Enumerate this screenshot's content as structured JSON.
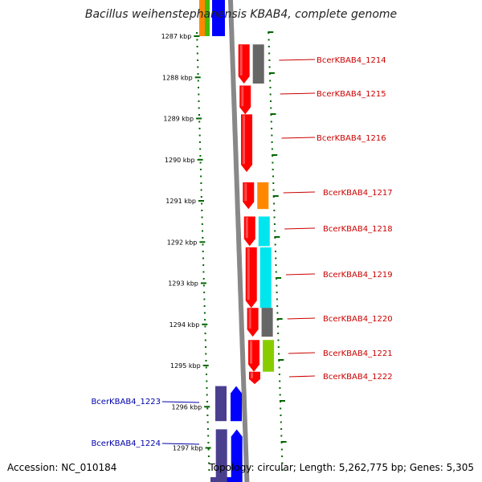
{
  "title": "Bacillus weihenstephanensis KBAB4, complete genome",
  "footer": {
    "accession": "Accession: NC_010184",
    "summary": "Topology: circular; Length: 5,262,775 bp; Genes: 5,305"
  },
  "colors": {
    "forward": "#ff0000",
    "reverse_strand": "#0000ff",
    "reverse_cog": "#4a3f8f",
    "label_forward": "#cc0000",
    "label_reverse": "#0000aa",
    "ruler": "#006600",
    "backbone": "#888888"
  },
  "scale": {
    "unit": "kbp",
    "ticks": [
      {
        "kbp": 1287,
        "label": "1287 kbp"
      },
      {
        "kbp": 1288,
        "label": "1288 kbp"
      },
      {
        "kbp": 1289,
        "label": "1289 kbp"
      },
      {
        "kbp": 1290,
        "label": "1290 kbp"
      },
      {
        "kbp": 1291,
        "label": "1291 kbp"
      },
      {
        "kbp": 1292,
        "label": "1292 kbp"
      },
      {
        "kbp": 1293,
        "label": "1293 kbp"
      },
      {
        "kbp": 1294,
        "label": "1294 kbp"
      },
      {
        "kbp": 1295,
        "label": "1295 kbp"
      },
      {
        "kbp": 1296,
        "label": "1296 kbp"
      },
      {
        "kbp": 1297,
        "label": "1297 kbp"
      }
    ]
  },
  "genes": [
    {
      "name": "BcerKBAB4_1214",
      "strand": "+",
      "start_kbp": 1287.2,
      "end_kbp": 1288.15,
      "cog_color": "#666666"
    },
    {
      "name": "BcerKBAB4_1215",
      "strand": "+",
      "start_kbp": 1288.2,
      "end_kbp": 1288.9,
      "cog_color": null
    },
    {
      "name": "BcerKBAB4_1216",
      "strand": "+",
      "start_kbp": 1288.9,
      "end_kbp": 1290.3,
      "cog_color": null
    },
    {
      "name": "BcerKBAB4_1217",
      "strand": "+",
      "start_kbp": 1290.55,
      "end_kbp": 1291.2,
      "cog_color": "#ff8800"
    },
    {
      "name": "BcerKBAB4_1218",
      "strand": "+",
      "start_kbp": 1291.38,
      "end_kbp": 1292.1,
      "cog_color": "#00e5ee"
    },
    {
      "name": "BcerKBAB4_1219",
      "strand": "+",
      "start_kbp": 1292.13,
      "end_kbp": 1293.6,
      "cog_color": "#00e5ee"
    },
    {
      "name": "BcerKBAB4_1220",
      "strand": "+",
      "start_kbp": 1293.6,
      "end_kbp": 1294.3,
      "cog_color": "#666666"
    },
    {
      "name": "BcerKBAB4_1221",
      "strand": "+",
      "start_kbp": 1294.38,
      "end_kbp": 1295.15,
      "cog_color": "#88cc00"
    },
    {
      "name": "BcerKBAB4_1222",
      "strand": "+",
      "start_kbp": 1295.15,
      "end_kbp": 1295.45,
      "cog_color": null
    },
    {
      "name": "BcerKBAB4_1223",
      "strand": "-",
      "start_kbp": 1295.5,
      "end_kbp": 1296.35,
      "cog_color": "#4a3f8f"
    },
    {
      "name": "BcerKBAB4_1224",
      "strand": "-",
      "start_kbp": 1296.55,
      "end_kbp": 1297.9,
      "cog_color": "#4a3f8f"
    }
  ]
}
